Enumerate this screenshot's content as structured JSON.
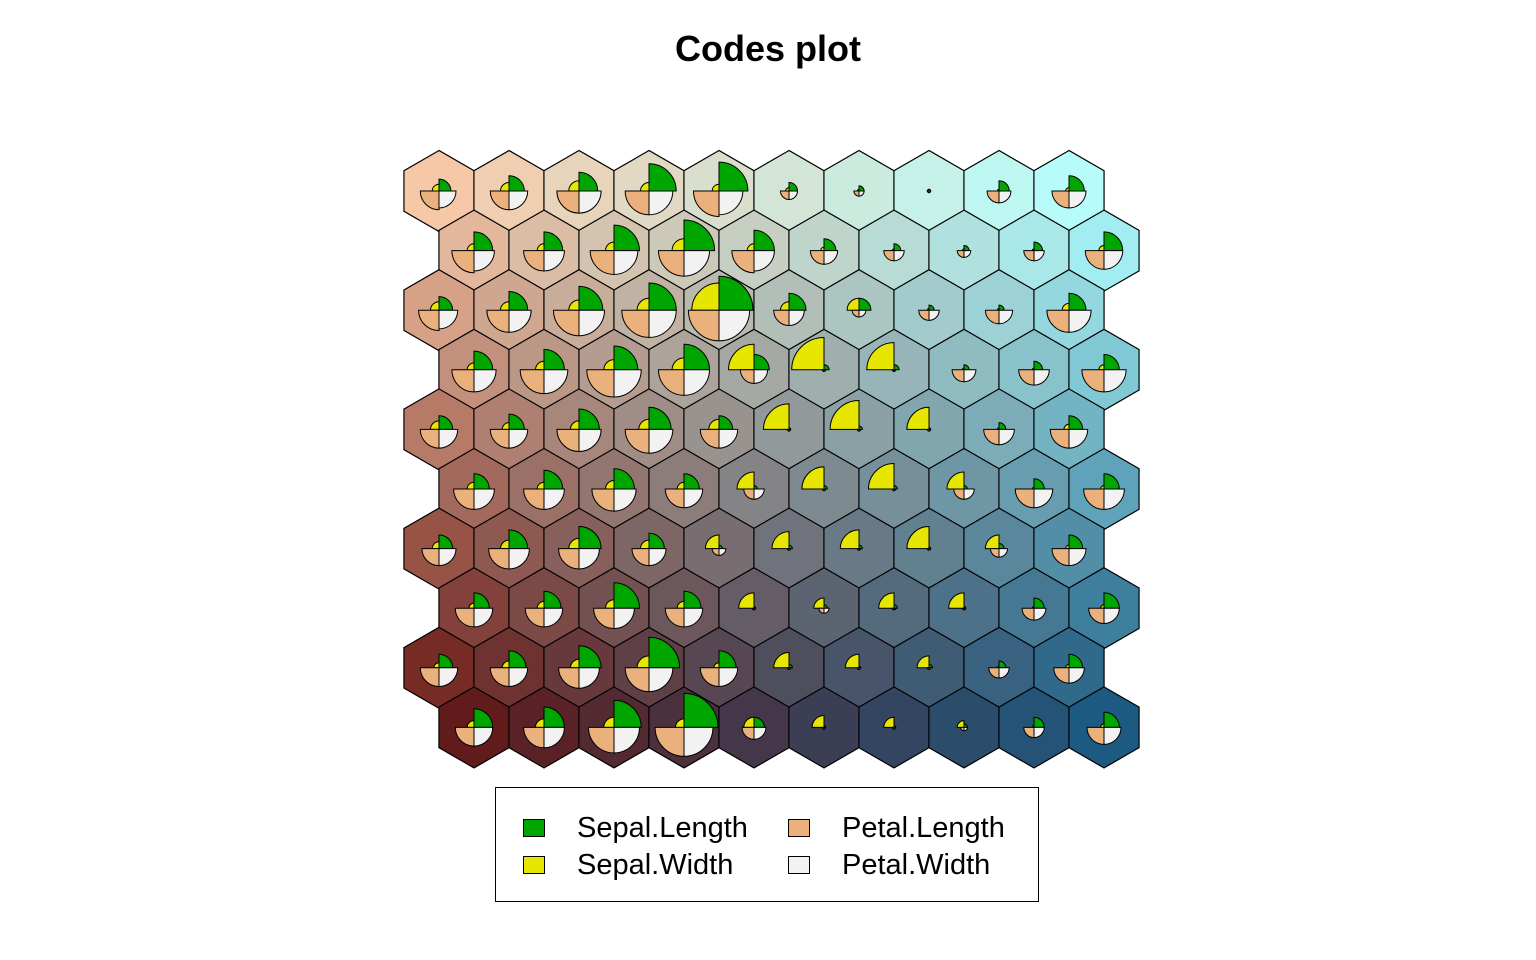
{
  "chart_data": {
    "type": "som-codes",
    "title": "Codes plot",
    "grid": {
      "xdim": 10,
      "ydim": 10,
      "topology": "hexagonal"
    },
    "variables": [
      "Sepal.Length",
      "Sepal.Width",
      "Petal.Length",
      "Petal.Width"
    ],
    "colors": {
      "Sepal.Length": "#00a600",
      "Sepal.Width": "#e6e600",
      "Petal.Length": "#ebb17d",
      "Petal.Width": "#f2f2f2"
    },
    "background_corners": {
      "top_left": "#f6c8a8",
      "top_right": "#b3ffff",
      "bottom_left": "#661815",
      "bottom_right": "#1c5a82"
    },
    "codes_rows_top_to_bottom": [
      [
        [
          0.35,
          0.2,
          0.55,
          0.5
        ],
        [
          0.45,
          0.25,
          0.55,
          0.55
        ],
        [
          0.55,
          0.3,
          0.65,
          0.65
        ],
        [
          0.8,
          0.25,
          0.7,
          0.7
        ],
        [
          0.85,
          0.2,
          0.75,
          0.7
        ],
        [
          0.25,
          0.1,
          0.25,
          0.25
        ],
        [
          0.15,
          0.05,
          0.15,
          0.15
        ],
        [
          0.05,
          0.05,
          0.05,
          0.05
        ],
        [
          0.3,
          0.05,
          0.35,
          0.35
        ],
        [
          0.45,
          0.1,
          0.5,
          0.5
        ]
      ],
      [
        [
          0.55,
          0.2,
          0.65,
          0.6
        ],
        [
          0.55,
          0.2,
          0.6,
          0.6
        ],
        [
          0.75,
          0.25,
          0.7,
          0.7
        ],
        [
          0.9,
          0.35,
          0.75,
          0.75
        ],
        [
          0.6,
          0.2,
          0.65,
          0.6
        ],
        [
          0.35,
          0.1,
          0.4,
          0.4
        ],
        [
          0.2,
          0.05,
          0.3,
          0.3
        ],
        [
          0.15,
          0.05,
          0.2,
          0.2
        ],
        [
          0.25,
          0.05,
          0.3,
          0.3
        ],
        [
          0.55,
          0.15,
          0.55,
          0.55
        ]
      ],
      [
        [
          0.4,
          0.25,
          0.6,
          0.55
        ],
        [
          0.55,
          0.25,
          0.65,
          0.65
        ],
        [
          0.7,
          0.3,
          0.75,
          0.75
        ],
        [
          0.8,
          0.35,
          0.8,
          0.8
        ],
        [
          1.0,
          0.8,
          0.9,
          0.9
        ],
        [
          0.5,
          0.25,
          0.45,
          0.45
        ],
        [
          0.35,
          0.35,
          0.2,
          0.2
        ],
        [
          0.15,
          0.05,
          0.3,
          0.3
        ],
        [
          0.15,
          0.05,
          0.4,
          0.4
        ],
        [
          0.5,
          0.2,
          0.65,
          0.65
        ]
      ],
      [
        [
          0.55,
          0.2,
          0.65,
          0.65
        ],
        [
          0.6,
          0.25,
          0.7,
          0.7
        ],
        [
          0.7,
          0.3,
          0.8,
          0.8
        ],
        [
          0.75,
          0.35,
          0.75,
          0.75
        ],
        [
          0.45,
          0.75,
          0.4,
          0.4
        ],
        [
          0.15,
          0.95,
          0.05,
          0.05
        ],
        [
          0.15,
          0.8,
          0.05,
          0.05
        ],
        [
          0.15,
          0.05,
          0.35,
          0.35
        ],
        [
          0.25,
          0.05,
          0.45,
          0.45
        ],
        [
          0.45,
          0.15,
          0.65,
          0.65
        ]
      ],
      [
        [
          0.4,
          0.25,
          0.55,
          0.55
        ],
        [
          0.45,
          0.2,
          0.55,
          0.55
        ],
        [
          0.6,
          0.25,
          0.65,
          0.65
        ],
        [
          0.65,
          0.3,
          0.7,
          0.7
        ],
        [
          0.4,
          0.3,
          0.55,
          0.55
        ],
        [
          0.05,
          0.75,
          0.05,
          0.05
        ],
        [
          0.1,
          0.85,
          0.05,
          0.05
        ],
        [
          0.05,
          0.65,
          0.05,
          0.05
        ],
        [
          0.2,
          0.05,
          0.45,
          0.45
        ],
        [
          0.4,
          0.15,
          0.55,
          0.55
        ]
      ],
      [
        [
          0.45,
          0.2,
          0.6,
          0.6
        ],
        [
          0.55,
          0.2,
          0.6,
          0.6
        ],
        [
          0.6,
          0.25,
          0.65,
          0.65
        ],
        [
          0.45,
          0.2,
          0.55,
          0.55
        ],
        [
          0.1,
          0.5,
          0.3,
          0.3
        ],
        [
          0.1,
          0.65,
          0.05,
          0.05
        ],
        [
          0.1,
          0.75,
          0.05,
          0.05
        ],
        [
          0.1,
          0.5,
          0.3,
          0.3
        ],
        [
          0.3,
          0.05,
          0.55,
          0.55
        ],
        [
          0.45,
          0.1,
          0.6,
          0.6
        ]
      ],
      [
        [
          0.4,
          0.2,
          0.5,
          0.5
        ],
        [
          0.55,
          0.25,
          0.6,
          0.6
        ],
        [
          0.65,
          0.3,
          0.6,
          0.6
        ],
        [
          0.45,
          0.25,
          0.5,
          0.5
        ],
        [
          0.1,
          0.4,
          0.2,
          0.2
        ],
        [
          0.1,
          0.5,
          0.05,
          0.05
        ],
        [
          0.1,
          0.55,
          0.05,
          0.05
        ],
        [
          0.05,
          0.65,
          0.05,
          0.05
        ],
        [
          0.15,
          0.4,
          0.25,
          0.25
        ],
        [
          0.4,
          0.1,
          0.5,
          0.5
        ]
      ],
      [
        [
          0.45,
          0.15,
          0.55,
          0.55
        ],
        [
          0.5,
          0.2,
          0.55,
          0.55
        ],
        [
          0.75,
          0.25,
          0.6,
          0.6
        ],
        [
          0.5,
          0.2,
          0.55,
          0.55
        ],
        [
          0.05,
          0.45,
          0.05,
          0.05
        ],
        [
          0.1,
          0.3,
          0.15,
          0.15
        ],
        [
          0.1,
          0.45,
          0.05,
          0.05
        ],
        [
          0.05,
          0.45,
          0.05,
          0.05
        ],
        [
          0.3,
          0.05,
          0.35,
          0.35
        ],
        [
          0.45,
          0.1,
          0.45,
          0.45
        ]
      ],
      [
        [
          0.4,
          0.15,
          0.55,
          0.55
        ],
        [
          0.5,
          0.2,
          0.55,
          0.55
        ],
        [
          0.65,
          0.25,
          0.6,
          0.6
        ],
        [
          0.9,
          0.35,
          0.7,
          0.7
        ],
        [
          0.5,
          0.15,
          0.55,
          0.55
        ],
        [
          0.1,
          0.45,
          0.05,
          0.05
        ],
        [
          0.05,
          0.4,
          0.05,
          0.05
        ],
        [
          0.1,
          0.35,
          0.05,
          0.05
        ],
        [
          0.2,
          0.05,
          0.3,
          0.3
        ],
        [
          0.4,
          0.1,
          0.45,
          0.45
        ]
      ],
      [
        [
          0.55,
          0.2,
          0.55,
          0.55
        ],
        [
          0.6,
          0.25,
          0.6,
          0.6
        ],
        [
          0.8,
          0.3,
          0.75,
          0.75
        ],
        [
          1.0,
          0.25,
          0.85,
          0.85
        ],
        [
          0.3,
          0.3,
          0.35,
          0.35
        ],
        [
          0.05,
          0.35,
          0.05,
          0.05
        ],
        [
          0.05,
          0.3,
          0.05,
          0.05
        ],
        [
          0.1,
          0.2,
          0.1,
          0.1
        ],
        [
          0.3,
          0.05,
          0.3,
          0.3
        ],
        [
          0.45,
          0.1,
          0.5,
          0.5
        ]
      ]
    ]
  }
}
